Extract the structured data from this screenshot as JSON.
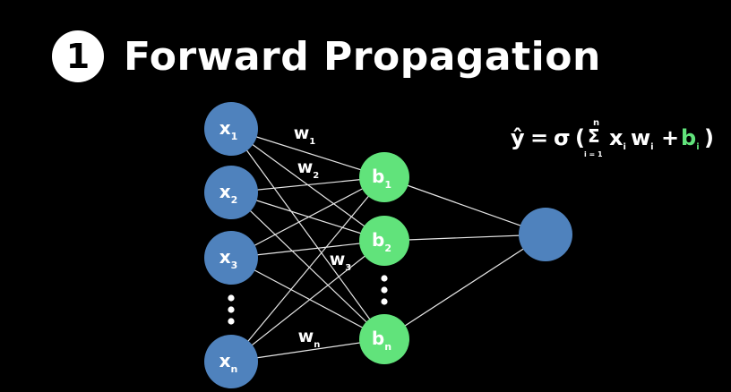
{
  "title": {
    "step": "1",
    "text": "Forward Propagation"
  },
  "colors": {
    "input_node": "#4f82bd",
    "hidden_node": "#61e37b",
    "output_node": "#4f82bd",
    "edge": "#e6e6e6",
    "bias_text": "#61e37b"
  },
  "inputs": [
    {
      "base": "x",
      "sub": "1"
    },
    {
      "base": "x",
      "sub": "2"
    },
    {
      "base": "x",
      "sub": "3"
    },
    {
      "base": "x",
      "sub": "n"
    }
  ],
  "hidden": [
    {
      "base": "b",
      "sub": "1"
    },
    {
      "base": "b",
      "sub": "2"
    },
    {
      "base": "b",
      "sub": "n"
    }
  ],
  "weights": [
    {
      "base": "w",
      "sub": "1"
    },
    {
      "base": "w",
      "sub": "2"
    },
    {
      "base": "w",
      "sub": "3"
    },
    {
      "base": "w",
      "sub": "n"
    }
  ],
  "ellipsis_mark": "⋮",
  "formula": {
    "lhs": "ŷ",
    "eq": "=",
    "sigma": "σ",
    "open": "(",
    "sum": "Σ",
    "sum_top": "n",
    "sum_bottom": "i = 1",
    "x": "x",
    "x_sub": "i",
    "w": "w",
    "w_sub": "i",
    "plus": "+",
    "b": "b",
    "b_sub": "i",
    "close": ")"
  }
}
